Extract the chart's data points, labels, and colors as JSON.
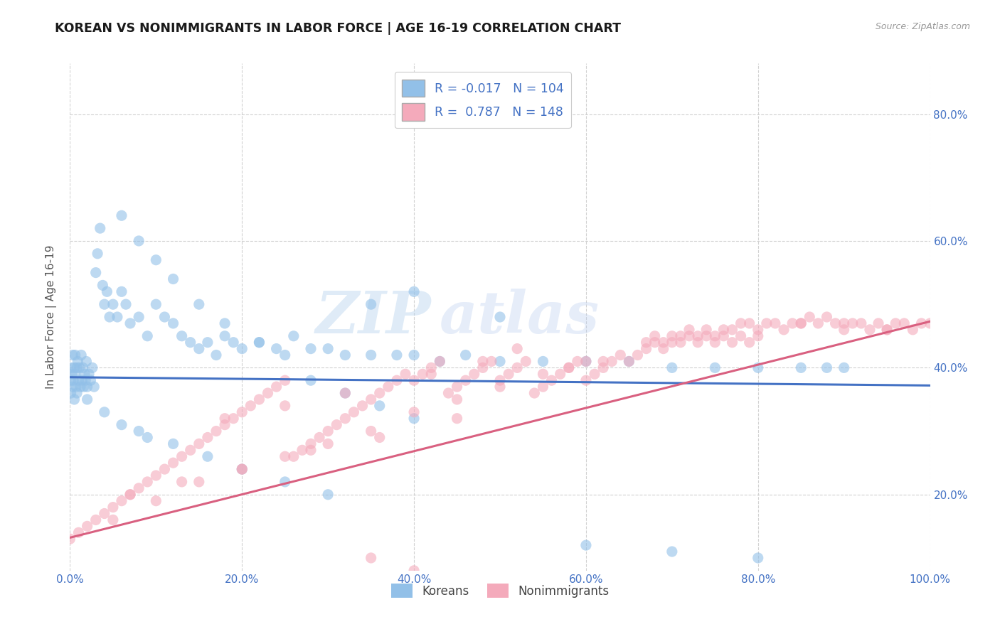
{
  "title": "KOREAN VS NONIMMIGRANTS IN LABOR FORCE | AGE 16-19 CORRELATION CHART",
  "source_text": "Source: ZipAtlas.com",
  "ylabel": "In Labor Force | Age 16-19",
  "xmin": 0.0,
  "xmax": 1.0,
  "ymin": 0.08,
  "ymax": 0.88,
  "xtick_labels": [
    "0.0%",
    "20.0%",
    "40.0%",
    "60.0%",
    "80.0%",
    "100.0%"
  ],
  "xtick_vals": [
    0.0,
    0.2,
    0.4,
    0.6,
    0.8,
    1.0
  ],
  "ytick_labels_right": [
    "20.0%",
    "40.0%",
    "60.0%",
    "80.0%"
  ],
  "ytick_vals": [
    0.2,
    0.4,
    0.6,
    0.8
  ],
  "korean_color": "#92C0E8",
  "nonimmigrant_color": "#F4AABB",
  "korean_line_color": "#4472c4",
  "nonimmigrant_line_color": "#D96080",
  "legend_label_korean": "Koreans",
  "legend_label_nonimmigrant": "Nonimmigrants",
  "watermark_line1": "ZIP",
  "watermark_line2": "atlas",
  "background_color": "#ffffff",
  "grid_color": "#cccccc",
  "korean_line_y0": 0.385,
  "korean_line_y1": 0.372,
  "nonimmigrant_line_y0": 0.132,
  "nonimmigrant_line_y1": 0.473,
  "korean_scatter_x": [
    0.001,
    0.001,
    0.001,
    0.002,
    0.003,
    0.003,
    0.004,
    0.005,
    0.005,
    0.006,
    0.006,
    0.007,
    0.008,
    0.008,
    0.009,
    0.01,
    0.011,
    0.012,
    0.013,
    0.014,
    0.015,
    0.016,
    0.017,
    0.018,
    0.019,
    0.02,
    0.022,
    0.024,
    0.026,
    0.028,
    0.03,
    0.032,
    0.035,
    0.038,
    0.04,
    0.043,
    0.046,
    0.05,
    0.055,
    0.06,
    0.065,
    0.07,
    0.08,
    0.09,
    0.1,
    0.11,
    0.12,
    0.13,
    0.14,
    0.15,
    0.16,
    0.17,
    0.18,
    0.19,
    0.2,
    0.22,
    0.24,
    0.26,
    0.28,
    0.3,
    0.32,
    0.35,
    0.38,
    0.4,
    0.43,
    0.46,
    0.5,
    0.55,
    0.6,
    0.65,
    0.7,
    0.75,
    0.8,
    0.85,
    0.88,
    0.9,
    0.06,
    0.08,
    0.1,
    0.12,
    0.15,
    0.18,
    0.22,
    0.25,
    0.28,
    0.32,
    0.36,
    0.4,
    0.08,
    0.12,
    0.16,
    0.2,
    0.25,
    0.3,
    0.35,
    0.4,
    0.5,
    0.6,
    0.7,
    0.8,
    0.02,
    0.04,
    0.06,
    0.09
  ],
  "korean_scatter_y": [
    0.38,
    0.4,
    0.36,
    0.39,
    0.37,
    0.42,
    0.38,
    0.4,
    0.35,
    0.39,
    0.42,
    0.37,
    0.4,
    0.36,
    0.41,
    0.38,
    0.4,
    0.37,
    0.42,
    0.38,
    0.4,
    0.37,
    0.39,
    0.38,
    0.41,
    0.37,
    0.39,
    0.38,
    0.4,
    0.37,
    0.55,
    0.58,
    0.62,
    0.53,
    0.5,
    0.52,
    0.48,
    0.5,
    0.48,
    0.52,
    0.5,
    0.47,
    0.48,
    0.45,
    0.5,
    0.48,
    0.47,
    0.45,
    0.44,
    0.43,
    0.44,
    0.42,
    0.45,
    0.44,
    0.43,
    0.44,
    0.43,
    0.45,
    0.43,
    0.43,
    0.42,
    0.42,
    0.42,
    0.42,
    0.41,
    0.42,
    0.41,
    0.41,
    0.41,
    0.41,
    0.4,
    0.4,
    0.4,
    0.4,
    0.4,
    0.4,
    0.64,
    0.6,
    0.57,
    0.54,
    0.5,
    0.47,
    0.44,
    0.42,
    0.38,
    0.36,
    0.34,
    0.32,
    0.3,
    0.28,
    0.26,
    0.24,
    0.22,
    0.2,
    0.5,
    0.52,
    0.48,
    0.12,
    0.11,
    0.1,
    0.35,
    0.33,
    0.31,
    0.29
  ],
  "nonimmigrant_scatter_x": [
    0.0,
    0.01,
    0.02,
    0.03,
    0.04,
    0.05,
    0.06,
    0.07,
    0.08,
    0.09,
    0.1,
    0.11,
    0.12,
    0.13,
    0.14,
    0.15,
    0.16,
    0.17,
    0.18,
    0.19,
    0.2,
    0.21,
    0.22,
    0.23,
    0.24,
    0.25,
    0.26,
    0.27,
    0.28,
    0.29,
    0.3,
    0.31,
    0.32,
    0.33,
    0.34,
    0.35,
    0.36,
    0.37,
    0.38,
    0.39,
    0.4,
    0.41,
    0.42,
    0.43,
    0.44,
    0.45,
    0.46,
    0.47,
    0.48,
    0.49,
    0.5,
    0.51,
    0.52,
    0.53,
    0.54,
    0.55,
    0.56,
    0.57,
    0.58,
    0.59,
    0.6,
    0.61,
    0.62,
    0.63,
    0.64,
    0.65,
    0.66,
    0.67,
    0.68,
    0.69,
    0.7,
    0.71,
    0.72,
    0.73,
    0.74,
    0.75,
    0.76,
    0.77,
    0.78,
    0.79,
    0.8,
    0.81,
    0.82,
    0.83,
    0.84,
    0.85,
    0.86,
    0.87,
    0.88,
    0.89,
    0.9,
    0.91,
    0.92,
    0.93,
    0.94,
    0.95,
    0.96,
    0.97,
    0.98,
    0.99,
    1.0,
    0.67,
    0.68,
    0.69,
    0.7,
    0.71,
    0.72,
    0.73,
    0.74,
    0.75,
    0.76,
    0.77,
    0.78,
    0.79,
    0.8,
    0.85,
    0.9,
    0.95,
    0.05,
    0.1,
    0.15,
    0.2,
    0.25,
    0.3,
    0.35,
    0.4,
    0.45,
    0.5,
    0.55,
    0.6,
    0.35,
    0.4,
    0.07,
    0.13,
    0.2,
    0.28,
    0.36,
    0.45,
    0.18,
    0.25,
    0.32,
    0.42,
    0.48,
    0.52,
    0.58,
    0.62
  ],
  "nonimmigrant_scatter_y": [
    0.13,
    0.14,
    0.15,
    0.16,
    0.17,
    0.18,
    0.19,
    0.2,
    0.21,
    0.22,
    0.23,
    0.24,
    0.25,
    0.26,
    0.27,
    0.28,
    0.29,
    0.3,
    0.31,
    0.32,
    0.33,
    0.34,
    0.35,
    0.36,
    0.37,
    0.38,
    0.26,
    0.27,
    0.28,
    0.29,
    0.3,
    0.31,
    0.32,
    0.33,
    0.34,
    0.35,
    0.36,
    0.37,
    0.38,
    0.39,
    0.38,
    0.39,
    0.4,
    0.41,
    0.36,
    0.37,
    0.38,
    0.39,
    0.4,
    0.41,
    0.38,
    0.39,
    0.4,
    0.41,
    0.36,
    0.37,
    0.38,
    0.39,
    0.4,
    0.41,
    0.38,
    0.39,
    0.4,
    0.41,
    0.42,
    0.41,
    0.42,
    0.43,
    0.44,
    0.43,
    0.44,
    0.45,
    0.46,
    0.45,
    0.46,
    0.45,
    0.46,
    0.46,
    0.47,
    0.47,
    0.46,
    0.47,
    0.47,
    0.46,
    0.47,
    0.47,
    0.48,
    0.47,
    0.48,
    0.47,
    0.46,
    0.47,
    0.47,
    0.46,
    0.47,
    0.46,
    0.47,
    0.47,
    0.46,
    0.47,
    0.47,
    0.44,
    0.45,
    0.44,
    0.45,
    0.44,
    0.45,
    0.44,
    0.45,
    0.44,
    0.45,
    0.44,
    0.45,
    0.44,
    0.45,
    0.47,
    0.47,
    0.46,
    0.16,
    0.19,
    0.22,
    0.24,
    0.26,
    0.28,
    0.3,
    0.33,
    0.35,
    0.37,
    0.39,
    0.41,
    0.1,
    0.08,
    0.2,
    0.22,
    0.24,
    0.27,
    0.29,
    0.32,
    0.32,
    0.34,
    0.36,
    0.39,
    0.41,
    0.43,
    0.4,
    0.41
  ]
}
